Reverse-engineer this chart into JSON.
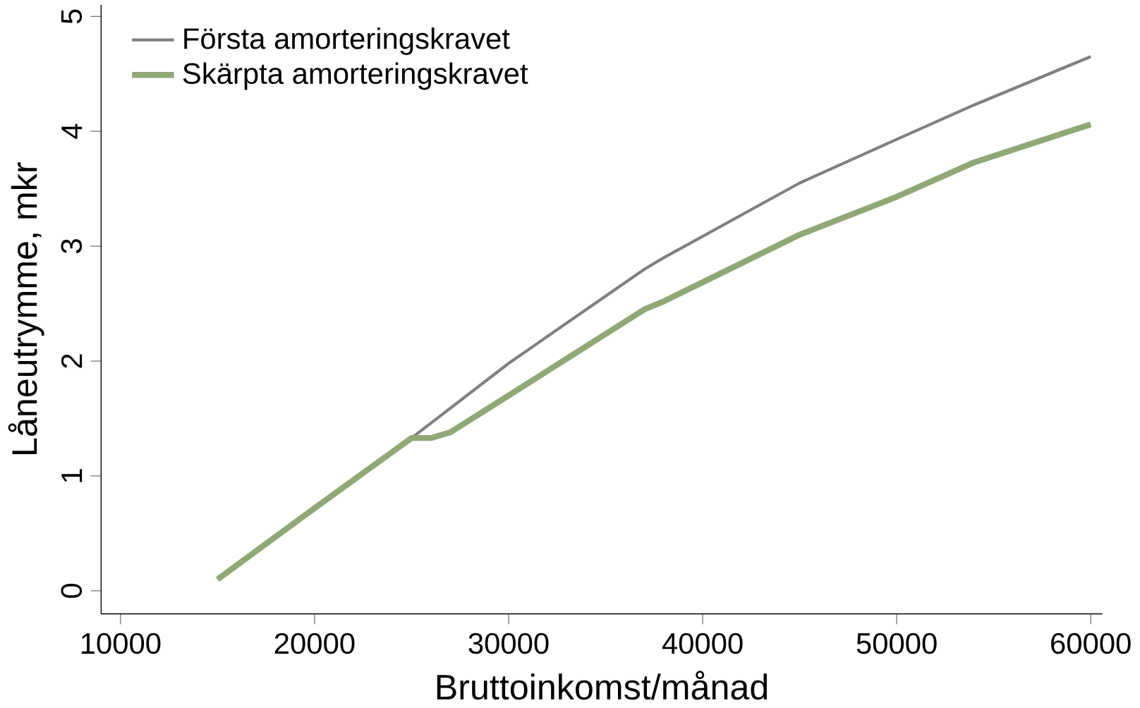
{
  "chart_data": {
    "type": "line",
    "xlabel": "Bruttoinkomst/månad",
    "ylabel": "Låneutrymme, mkr",
    "xlim": [
      9000,
      60600
    ],
    "ylim": [
      -0.2,
      5.1
    ],
    "xticks": [
      10000,
      20000,
      30000,
      40000,
      50000,
      60000
    ],
    "yticks": [
      0,
      1,
      2,
      3,
      4,
      5
    ],
    "grid": false,
    "legend": "top left",
    "series": [
      {
        "name": "Första amorteringskravet",
        "color": "#808080",
        "x": [
          15000,
          20000,
          25000,
          30000,
          37000,
          38000,
          45000,
          50000,
          54000,
          60000
        ],
        "values": [
          0.1,
          0.72,
          1.33,
          1.98,
          2.8,
          2.9,
          3.55,
          3.93,
          4.23,
          4.65
        ]
      },
      {
        "name": "Skärpta amorteringskravet",
        "color": "#8fa876",
        "x": [
          15000,
          20000,
          25000,
          26000,
          27000,
          30000,
          37000,
          38000,
          45000,
          50000,
          54000,
          60000
        ],
        "values": [
          0.1,
          0.72,
          1.33,
          1.33,
          1.38,
          1.7,
          2.45,
          2.52,
          3.1,
          3.43,
          3.73,
          4.06
        ]
      }
    ]
  }
}
